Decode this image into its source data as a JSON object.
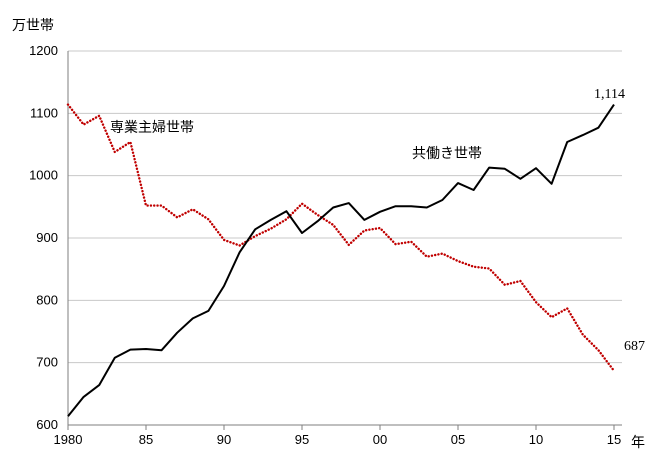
{
  "chart_data": {
    "type": "line",
    "y_unit": "万世帯",
    "x_unit": "年",
    "ylim": [
      600,
      1200
    ],
    "yticks": [
      600,
      700,
      800,
      900,
      1000,
      1100,
      1200
    ],
    "xlim": [
      1980,
      2015
    ],
    "xticks": [
      {
        "value": 1980,
        "label": "1980"
      },
      {
        "value": 1985,
        "label": "85"
      },
      {
        "value": 1990,
        "label": "90"
      },
      {
        "value": 1995,
        "label": "95"
      },
      {
        "value": 2000,
        "label": "00"
      },
      {
        "value": 2005,
        "label": "05"
      },
      {
        "value": 2010,
        "label": "10"
      },
      {
        "value": 2015,
        "label": "15"
      }
    ],
    "grid": "horizontal",
    "x": [
      1980,
      1981,
      1982,
      1983,
      1984,
      1985,
      1986,
      1987,
      1988,
      1989,
      1990,
      1991,
      1992,
      1993,
      1994,
      1995,
      1996,
      1997,
      1998,
      1999,
      2000,
      2001,
      2002,
      2003,
      2004,
      2005,
      2006,
      2007,
      2008,
      2009,
      2010,
      2011,
      2012,
      2013,
      2014,
      2015
    ],
    "series": [
      {
        "name": "専業主婦世帯",
        "color": "#c00000",
        "style": "dotted",
        "values": [
          1114,
          1082,
          1096,
          1038,
          1054,
          952,
          952,
          933,
          946,
          930,
          897,
          888,
          903,
          915,
          930,
          955,
          937,
          921,
          889,
          912,
          916,
          890,
          894,
          870,
          875,
          863,
          854,
          851,
          825,
          831,
          797,
          773,
          787,
          745,
          720,
          687
        ],
        "end_label": "687"
      },
      {
        "name": "共働き世帯",
        "color": "#000000",
        "style": "solid",
        "values": [
          614,
          645,
          664,
          708,
          721,
          722,
          720,
          748,
          771,
          783,
          823,
          877,
          914,
          929,
          943,
          908,
          927,
          949,
          956,
          929,
          942,
          951,
          951,
          949,
          961,
          988,
          977,
          1013,
          1011,
          995,
          1012,
          987,
          1054,
          1065,
          1077,
          1114
        ],
        "end_label": "1,114"
      }
    ]
  }
}
